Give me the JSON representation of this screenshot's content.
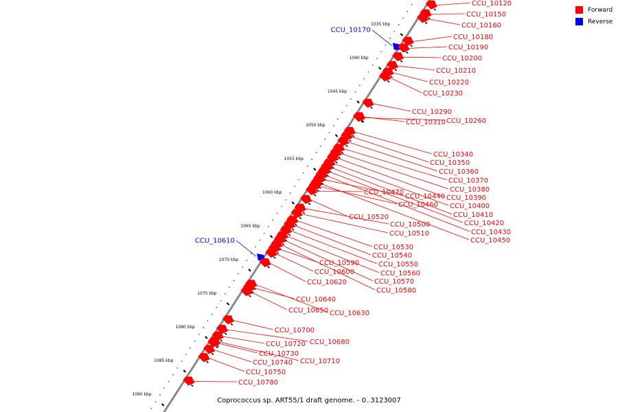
{
  "legend": {
    "forward_label": "Forward",
    "reverse_label": "Reverse",
    "forward_color": "#ff0000",
    "reverse_color": "#0000ff"
  },
  "caption": "Coprococcus sp. ART55/1 draft genome. - 0..3123007",
  "ticks": [
    "1035 kbp",
    "1040 kbp",
    "1045 kbp",
    "1050 kbp",
    "1055 kbp",
    "1060 kbp",
    "1065 kbp",
    "1070 kbp",
    "1075 kbp",
    "1080 kbp",
    "1085 kbp",
    "1090 kbp"
  ],
  "genes": [
    {
      "name": "CCU_10120",
      "strand": "forward",
      "kbp": 1031.3
    },
    {
      "name": "CCU_10150",
      "strand": "forward",
      "kbp": 1032.6
    },
    {
      "name": "CCU_10160",
      "strand": "forward",
      "kbp": 1033.3
    },
    {
      "name": "CCU_10170",
      "strand": "reverse",
      "kbp": 1037.3
    },
    {
      "name": "CCU_10180",
      "strand": "forward",
      "kbp": 1036.7
    },
    {
      "name": "CCU_10190",
      "strand": "forward",
      "kbp": 1037.7
    },
    {
      "name": "CCU_10200",
      "strand": "forward",
      "kbp": 1039.0
    },
    {
      "name": "CCU_10210",
      "strand": "forward",
      "kbp": 1040.3
    },
    {
      "name": "CCU_10220",
      "strand": "forward",
      "kbp": 1041.3
    },
    {
      "name": "CCU_10230",
      "strand": "forward",
      "kbp": 1042.0
    },
    {
      "name": "CCU_10260",
      "strand": "forward",
      "kbp": 1048.0
    },
    {
      "name": "CCU_10290",
      "strand": "forward",
      "kbp": 1045.9
    },
    {
      "name": "CCU_10310",
      "strand": "forward",
      "kbp": 1047.9
    },
    {
      "name": "CCU_10340",
      "strand": "forward",
      "kbp": 1050.1
    },
    {
      "name": "CCU_10350",
      "strand": "forward",
      "kbp": 1050.8
    },
    {
      "name": "CCU_10360",
      "strand": "forward",
      "kbp": 1051.6
    },
    {
      "name": "CCU_10370",
      "strand": "forward",
      "kbp": 1052.6
    },
    {
      "name": "CCU_10380",
      "strand": "forward",
      "kbp": 1053.3
    },
    {
      "name": "CCU_10390",
      "strand": "forward",
      "kbp": 1054.0
    },
    {
      "name": "CCU_10400",
      "strand": "forward",
      "kbp": 1054.8
    },
    {
      "name": "CCU_10410",
      "strand": "forward",
      "kbp": 1055.4
    },
    {
      "name": "CCU_10420",
      "strand": "forward",
      "kbp": 1056.0
    },
    {
      "name": "CCU_10430",
      "strand": "forward",
      "kbp": 1056.6
    },
    {
      "name": "CCU_10440",
      "strand": "forward",
      "kbp": 1057.2
    },
    {
      "name": "CCU_10450",
      "strand": "forward",
      "kbp": 1057.8
    },
    {
      "name": "CCU_10460",
      "strand": "forward",
      "kbp": 1058.2
    },
    {
      "name": "CCU_10470",
      "strand": "forward",
      "kbp": 1058.9
    },
    {
      "name": "CCU_10500",
      "strand": "forward",
      "kbp": 1061.5
    },
    {
      "name": "CCU_10510",
      "strand": "forward",
      "kbp": 1062.3
    },
    {
      "name": "CCU_10520",
      "strand": "forward",
      "kbp": 1060.2
    },
    {
      "name": "CCU_10530",
      "strand": "forward",
      "kbp": 1063.3
    },
    {
      "name": "CCU_10540",
      "strand": "forward",
      "kbp": 1064.0
    },
    {
      "name": "CCU_10550",
      "strand": "forward",
      "kbp": 1064.8
    },
    {
      "name": "CCU_10560",
      "strand": "forward",
      "kbp": 1065.6
    },
    {
      "name": "CCU_10570",
      "strand": "forward",
      "kbp": 1066.2
    },
    {
      "name": "CCU_10580",
      "strand": "forward",
      "kbp": 1066.9
    },
    {
      "name": "CCU_10590",
      "strand": "forward",
      "kbp": 1067.5
    },
    {
      "name": "CCU_10600",
      "strand": "forward",
      "kbp": 1068.2
    },
    {
      "name": "CCU_10610",
      "strand": "reverse",
      "kbp": 1068.6
    },
    {
      "name": "CCU_10620",
      "strand": "forward",
      "kbp": 1069.6
    },
    {
      "name": "CCU_10630",
      "strand": "forward",
      "kbp": 1072.8
    },
    {
      "name": "CCU_10640",
      "strand": "forward",
      "kbp": 1073.3
    },
    {
      "name": "CCU_10650",
      "strand": "forward",
      "kbp": 1073.9
    },
    {
      "name": "CCU_10680",
      "strand": "forward",
      "kbp": 1079.5
    },
    {
      "name": "CCU_10700",
      "strand": "forward",
      "kbp": 1078.1
    },
    {
      "name": "CCU_10710",
      "strand": "forward",
      "kbp": 1081.3
    },
    {
      "name": "CCU_10720",
      "strand": "forward",
      "kbp": 1080.5
    },
    {
      "name": "CCU_10730",
      "strand": "forward",
      "kbp": 1081.5
    },
    {
      "name": "CCU_10740",
      "strand": "forward",
      "kbp": 1082.5
    },
    {
      "name": "CCU_10750",
      "strand": "forward",
      "kbp": 1083.7
    },
    {
      "name": "CCU_10780",
      "strand": "forward",
      "kbp": 1087.2
    }
  ]
}
